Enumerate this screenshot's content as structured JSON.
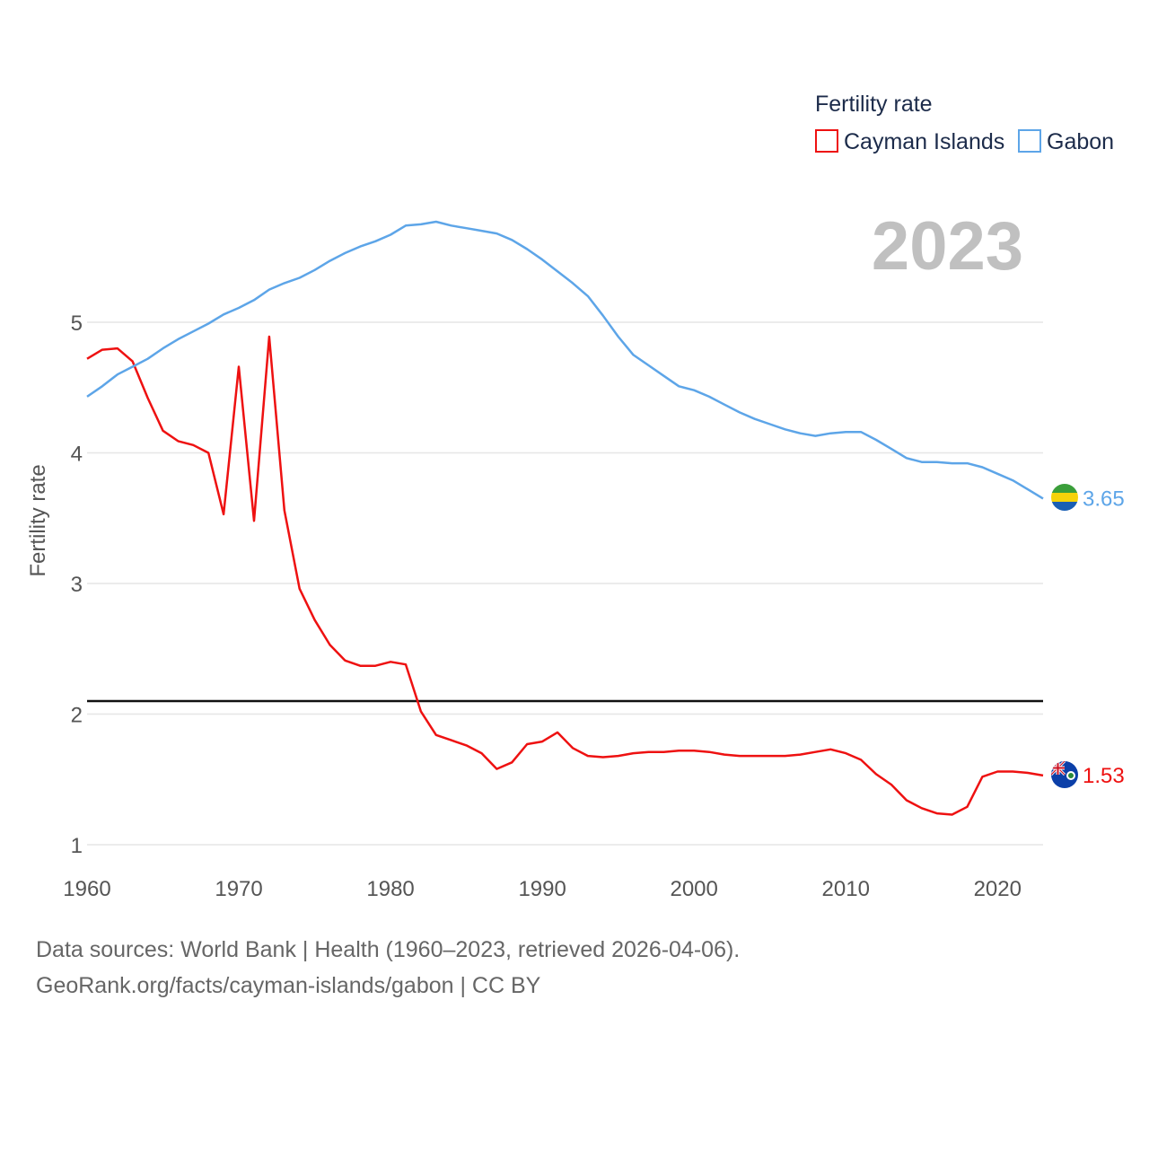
{
  "chart_data": {
    "type": "line",
    "legend_title": "Fertility rate",
    "ylabel": "Fertility rate",
    "current_year": "2023",
    "xlim": [
      1960,
      2023
    ],
    "ylim": [
      1,
      5.9
    ],
    "x_ticks": [
      1960,
      1970,
      1980,
      1990,
      2000,
      2010,
      2020
    ],
    "y_ticks": [
      1,
      2,
      3,
      4,
      5
    ],
    "reference_line": 2.1,
    "x": [
      1960,
      1961,
      1962,
      1963,
      1964,
      1965,
      1966,
      1967,
      1968,
      1969,
      1970,
      1971,
      1972,
      1973,
      1974,
      1975,
      1976,
      1977,
      1978,
      1979,
      1980,
      1981,
      1982,
      1983,
      1984,
      1985,
      1986,
      1987,
      1988,
      1989,
      1990,
      1991,
      1992,
      1993,
      1994,
      1995,
      1996,
      1997,
      1998,
      1999,
      2000,
      2001,
      2002,
      2003,
      2004,
      2005,
      2006,
      2007,
      2008,
      2009,
      2010,
      2011,
      2012,
      2013,
      2014,
      2015,
      2016,
      2017,
      2018,
      2019,
      2020,
      2021,
      2022,
      2023
    ],
    "series": [
      {
        "name": "Cayman Islands",
        "color": "#ee1111",
        "end_label": "1.53",
        "values": [
          4.72,
          4.79,
          4.8,
          4.7,
          4.42,
          4.17,
          4.09,
          4.06,
          4.0,
          3.53,
          4.66,
          3.48,
          4.89,
          3.56,
          2.96,
          2.72,
          2.53,
          2.41,
          2.37,
          2.37,
          2.4,
          2.38,
          2.02,
          1.84,
          1.8,
          1.76,
          1.7,
          1.58,
          1.63,
          1.77,
          1.79,
          1.86,
          1.74,
          1.68,
          1.67,
          1.68,
          1.7,
          1.71,
          1.71,
          1.72,
          1.72,
          1.71,
          1.69,
          1.68,
          1.68,
          1.68,
          1.68,
          1.69,
          1.71,
          1.73,
          1.7,
          1.65,
          1.54,
          1.46,
          1.34,
          1.28,
          1.24,
          1.23,
          1.29,
          1.52,
          1.56,
          1.56,
          1.55,
          1.53
        ]
      },
      {
        "name": "Gabon",
        "color": "#5da5e8",
        "end_label": "3.65",
        "values": [
          4.43,
          4.51,
          4.6,
          4.66,
          4.72,
          4.8,
          4.87,
          4.93,
          4.99,
          5.06,
          5.11,
          5.17,
          5.25,
          5.3,
          5.34,
          5.4,
          5.47,
          5.53,
          5.58,
          5.62,
          5.67,
          5.74,
          5.75,
          5.77,
          5.74,
          5.72,
          5.7,
          5.68,
          5.63,
          5.56,
          5.48,
          5.39,
          5.3,
          5.2,
          5.05,
          4.89,
          4.75,
          4.67,
          4.59,
          4.51,
          4.48,
          4.43,
          4.37,
          4.31,
          4.26,
          4.22,
          4.18,
          4.15,
          4.13,
          4.15,
          4.16,
          4.16,
          4.1,
          4.03,
          3.96,
          3.93,
          3.93,
          3.92,
          3.92,
          3.89,
          3.84,
          3.79,
          3.72,
          3.65
        ]
      }
    ]
  },
  "footer": {
    "sources": "Data sources: World Bank | Health (1960–2023, retrieved 2026-04-06).",
    "credit": "GeoRank.org/facts/cayman-islands/gabon | CC BY"
  }
}
